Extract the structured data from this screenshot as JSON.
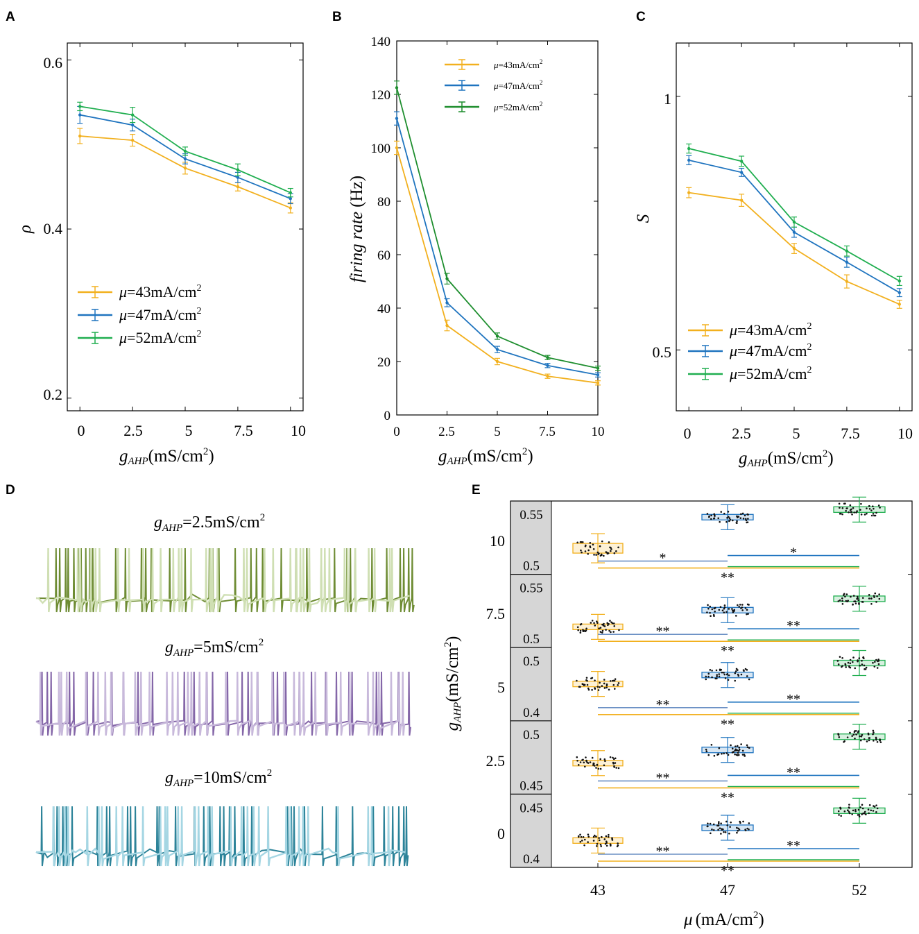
{
  "colors": {
    "orange": "#F2B01E",
    "blue": "#1F74BF",
    "green": "#1FAE4F",
    "greenDark": "#1E8E2E"
  },
  "panel_labels": [
    "A",
    "B",
    "C",
    "D",
    "E"
  ],
  "chart_data": [
    {
      "panel": "A",
      "type": "line",
      "x": [
        0,
        2.5,
        5,
        7.5,
        10
      ],
      "x_tick_labels": [
        "0",
        "2.5",
        "5",
        "7.5",
        "10"
      ],
      "y_tick_labels": [
        "0.2",
        "0.4",
        "0.6"
      ],
      "xlabel": "g",
      "xlabel_sub": "AHP",
      "xlabel_unit": "(mS/cm",
      "xlabel_sup": "2",
      "xlabel_end": ")",
      "ylabel": "ρ",
      "xlim": [
        -0.6,
        10.6
      ],
      "ylim": [
        0.185,
        0.62
      ],
      "yticks": [
        0.2,
        0.4,
        0.6
      ],
      "legend": "lower-left",
      "series": [
        {
          "mu": "μ",
          "name": "=43mA/cm",
          "sup": "2",
          "color": "#F2B01E",
          "values": [
            0.51,
            0.505,
            0.472,
            0.45,
            0.425
          ],
          "err": [
            0.009,
            0.007,
            0.007,
            0.005,
            0.006
          ]
        },
        {
          "mu": "μ",
          "name": "=47mA/cm",
          "sup": "2",
          "color": "#1F74BF",
          "values": [
            0.535,
            0.523,
            0.483,
            0.461,
            0.436
          ],
          "err": [
            0.01,
            0.007,
            0.006,
            0.006,
            0.006
          ]
        },
        {
          "mu": "μ",
          "name": "=52mA/cm",
          "sup": "2",
          "color": "#1FAE4F",
          "values": [
            0.545,
            0.535,
            0.492,
            0.47,
            0.443
          ],
          "err": [
            0.005,
            0.009,
            0.005,
            0.007,
            0.005
          ]
        }
      ]
    },
    {
      "panel": "B",
      "type": "line",
      "x": [
        0,
        2.5,
        5,
        7.5,
        10
      ],
      "x_tick_labels": [
        "0",
        "2.5",
        "5",
        "7.5",
        "10"
      ],
      "y_tick_labels": [
        "0",
        "20",
        "40",
        "60",
        "80",
        "100",
        "120",
        "140"
      ],
      "xlabel": "g",
      "xlabel_sub": "AHP",
      "xlabel_unit": "(mS/cm",
      "xlabel_sup": "2",
      "xlabel_end": ")",
      "ylabel": "firing  rate",
      "ylabel_unit": "(Hz)",
      "xlim": [
        0,
        10
      ],
      "ylim": [
        0,
        140
      ],
      "yticks": [
        0,
        20,
        40,
        60,
        80,
        100,
        120,
        140
      ],
      "legend": "top-center",
      "series": [
        {
          "mu": "μ",
          "name": "=43mA/cm",
          "sup": "2",
          "color": "#F2B01E",
          "values": [
            100,
            33.5,
            20,
            14.5,
            12
          ],
          "err": [
            2.5,
            2,
            1.2,
            0.8,
            0.8
          ]
        },
        {
          "mu": "μ",
          "name": "=47mA/cm",
          "sup": "2",
          "color": "#1F74BF",
          "values": [
            111,
            42,
            24.5,
            18.5,
            15
          ],
          "err": [
            2.5,
            1.5,
            1.2,
            0.8,
            0.8
          ]
        },
        {
          "mu": "μ",
          "name": "=52mA/cm",
          "sup": "2",
          "color": "#1E8E2E",
          "values": [
            122.5,
            51,
            29.5,
            21.5,
            17.5
          ],
          "err": [
            2.5,
            2,
            1.2,
            0.8,
            0.8
          ]
        }
      ]
    },
    {
      "panel": "C",
      "type": "line",
      "x": [
        0,
        2.5,
        5,
        7.5,
        10
      ],
      "x_tick_labels": [
        "0",
        "2.5",
        "5",
        "7.5",
        "10"
      ],
      "y_tick_labels": [
        "0.5",
        "1"
      ],
      "xlabel": "g",
      "xlabel_sub": "AHP",
      "xlabel_unit": "(mS/cm",
      "xlabel_sup": "2",
      "xlabel_end": ")",
      "ylabel": "S",
      "xlim": [
        -0.6,
        10.6
      ],
      "ylim": [
        0.38,
        1.105
      ],
      "yticks": [
        0.5,
        1
      ],
      "legend": "lower-left",
      "series": [
        {
          "mu": "μ",
          "name": "=43mA/cm",
          "sup": "2",
          "color": "#F2B01E",
          "values": [
            0.81,
            0.795,
            0.7,
            0.635,
            0.59
          ],
          "err": [
            0.01,
            0.012,
            0.01,
            0.013,
            0.008
          ]
        },
        {
          "mu": "μ",
          "name": "=47mA/cm",
          "sup": "2",
          "color": "#1F74BF",
          "values": [
            0.874,
            0.85,
            0.732,
            0.673,
            0.613
          ],
          "err": [
            0.009,
            0.008,
            0.01,
            0.01,
            0.008
          ]
        },
        {
          "mu": "μ",
          "name": "=52mA/cm",
          "sup": "2",
          "color": "#1FAE4F",
          "values": [
            0.897,
            0.872,
            0.752,
            0.695,
            0.636
          ],
          "err": [
            0.009,
            0.01,
            0.01,
            0.01,
            0.009
          ]
        }
      ]
    },
    {
      "panel": "E",
      "type": "box",
      "categories": [
        "43",
        "47",
        "52"
      ],
      "xlabel": "μ",
      "xlabel_unit": "(mA/cm",
      "xlabel_sup": "2",
      "xlabel_end": ")",
      "ylabel": "g",
      "ylabel_sub": "AHP",
      "ylabel_unit": "(mS/cm",
      "ylabel_sup": "2",
      "ylabel_end": ")",
      "colors": [
        "#F2B01E",
        "#1F74BF",
        "#1FAE4F"
      ],
      "rows": [
        {
          "g": "10",
          "inner_ticks": [
            "0.55",
            "0.5"
          ],
          "inner_range": [
            0.48,
            0.562
          ],
          "medians": [
            0.507,
            0.548,
            0.558
          ],
          "sig": [
            "*",
            "*",
            "**"
          ]
        },
        {
          "g": "7.5",
          "inner_ticks": [
            "0.55",
            "0.5"
          ],
          "inner_range": [
            0.48,
            0.562
          ],
          "medians": [
            0.5,
            0.522,
            0.537
          ],
          "sig": [
            "**",
            "**",
            "**"
          ]
        },
        {
          "g": "5",
          "inner_ticks": [
            "0.5",
            "0.4"
          ],
          "inner_range": [
            0.385,
            0.51
          ],
          "medians": [
            0.448,
            0.466,
            0.49
          ],
          "sig": [
            "**",
            "**",
            "**"
          ]
        },
        {
          "g": "2.5",
          "inner_ticks": [
            "0.5",
            "0.45"
          ],
          "inner_range": [
            0.442,
            0.508
          ],
          "medians": [
            0.469,
            0.483,
            0.497
          ],
          "sig": [
            "**",
            "**",
            "**"
          ]
        },
        {
          "g": "0",
          "inner_ticks": [
            "0.45",
            "0.4"
          ],
          "inner_range": [
            0.385,
            0.458
          ],
          "medians": [
            0.41,
            0.425,
            0.445
          ],
          "sig": [
            "**",
            "**",
            "**"
          ]
        }
      ]
    }
  ],
  "panel_D": {
    "traces": [
      {
        "label_g": "g",
        "label_sub": "AHP",
        "label_val": "=2.5mS/cm",
        "label_sup": "2",
        "dark": "#6E8C33",
        "light": "#CFDFB3"
      },
      {
        "label_g": "g",
        "label_sub": "AHP",
        "label_val": "=5mS/cm",
        "label_sup": "2",
        "dark": "#8466A8",
        "light": "#C8B9DB"
      },
      {
        "label_g": "g",
        "label_sub": "AHP",
        "label_val": "=10mS/cm",
        "label_sup": "2",
        "dark": "#2C8399",
        "light": "#A5D6E3"
      }
    ]
  }
}
